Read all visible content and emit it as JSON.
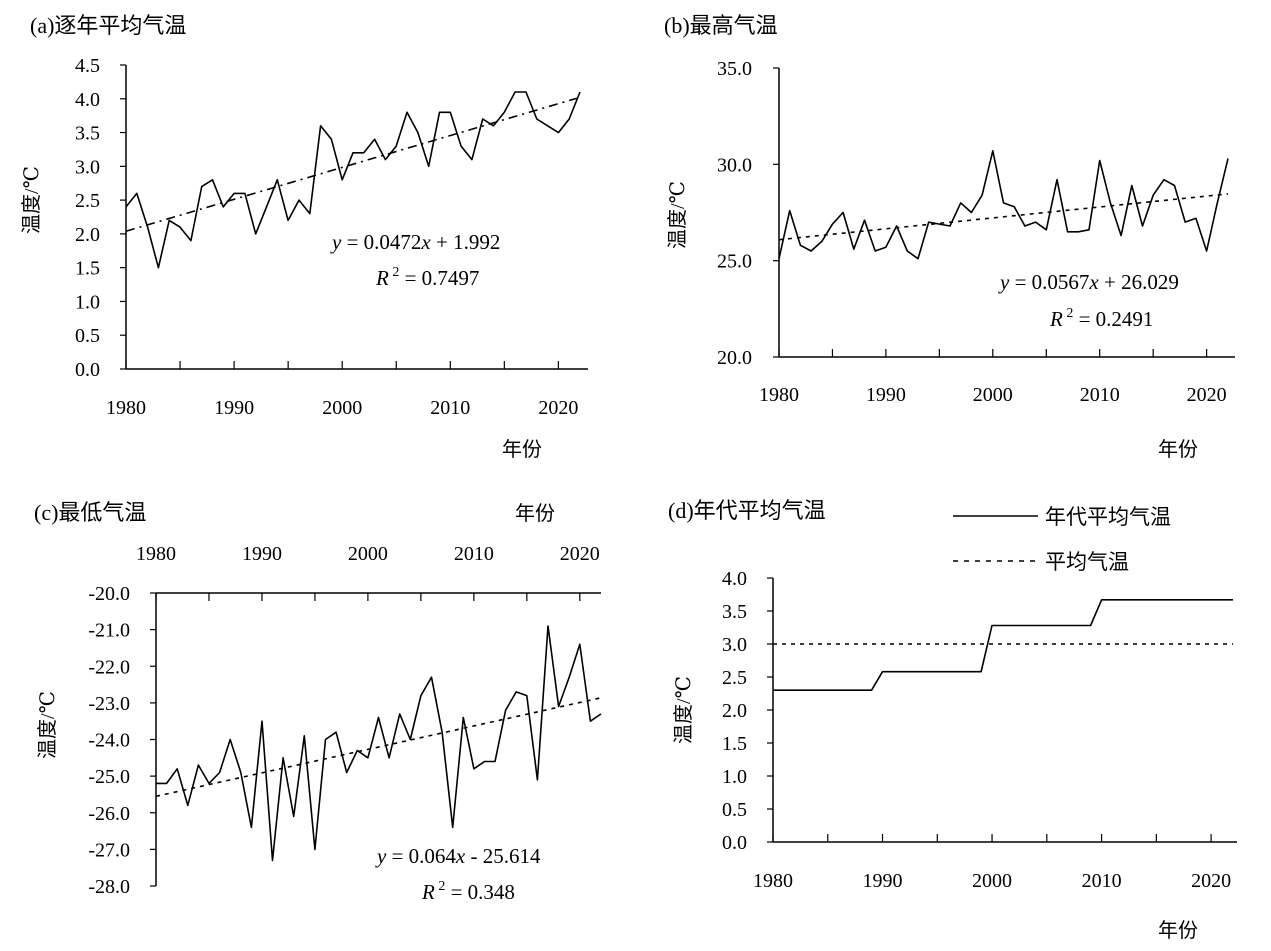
{
  "chart_data": [
    {
      "id": "a",
      "type": "line",
      "title": "(a)逐年平均气温",
      "xlabel": "年份",
      "ylabel": "温度/℃",
      "xlim": [
        1980,
        2022
      ],
      "ylim": [
        0.0,
        4.5
      ],
      "xticks": [
        "1980",
        "1990",
        "2000",
        "2010",
        "2020"
      ],
      "yticks": [
        "0.0",
        "0.5",
        "1.0",
        "1.5",
        "2.0",
        "2.5",
        "3.0",
        "3.5",
        "4.0",
        "4.5"
      ],
      "series": [
        {
          "style": "solid",
          "x": [
            1980,
            1981,
            1982,
            1983,
            1984,
            1985,
            1986,
            1987,
            1988,
            1989,
            1990,
            1991,
            1992,
            1993,
            1994,
            1995,
            1996,
            1997,
            1998,
            1999,
            2000,
            2001,
            2002,
            2003,
            2004,
            2005,
            2006,
            2007,
            2008,
            2009,
            2010,
            2011,
            2012,
            2013,
            2014,
            2015,
            2016,
            2017,
            2018,
            2019,
            2020,
            2021,
            2022
          ],
          "y": [
            2.4,
            2.6,
            2.1,
            1.5,
            2.2,
            2.1,
            1.9,
            2.7,
            2.8,
            2.4,
            2.6,
            2.6,
            2.0,
            2.4,
            2.8,
            2.2,
            2.5,
            2.3,
            3.6,
            3.4,
            2.8,
            3.2,
            3.2,
            3.4,
            3.1,
            3.3,
            3.8,
            3.5,
            3.0,
            3.8,
            3.8,
            3.3,
            3.1,
            3.7,
            3.6,
            3.8,
            4.1,
            4.1,
            3.7,
            3.6,
            3.5,
            3.7,
            4.1
          ]
        },
        {
          "style": "dash-dot",
          "trend": {
            "slope": 0.0472,
            "intercept": 1.992
          }
        }
      ],
      "annotations": {
        "equation": "y = 0.0472x + 1.992",
        "r2": "R 2 = 0.7497"
      }
    },
    {
      "id": "b",
      "type": "line",
      "title": "(b)最高气温",
      "xlabel": "年份",
      "ylabel": "温度/℃",
      "xlim": [
        1980,
        2022
      ],
      "ylim": [
        20.0,
        35.0
      ],
      "xticks": [
        "1980",
        "1990",
        "2000",
        "2010",
        "2020"
      ],
      "yticks": [
        "20.0",
        "25.0",
        "30.0",
        "35.0"
      ],
      "series": [
        {
          "style": "solid",
          "x": [
            1980,
            1981,
            1982,
            1983,
            1984,
            1985,
            1986,
            1987,
            1988,
            1989,
            1990,
            1991,
            1992,
            1993,
            1994,
            1995,
            1996,
            1997,
            1998,
            1999,
            2000,
            2001,
            2002,
            2003,
            2004,
            2005,
            2006,
            2007,
            2008,
            2009,
            2010,
            2011,
            2012,
            2013,
            2014,
            2015,
            2016,
            2017,
            2018,
            2019,
            2020,
            2021,
            2022
          ],
          "y": [
            25.1,
            27.6,
            25.8,
            25.5,
            26.0,
            26.9,
            27.5,
            25.6,
            27.1,
            25.5,
            25.7,
            26.8,
            25.5,
            25.1,
            27.0,
            26.9,
            26.8,
            28.0,
            27.5,
            28.4,
            30.7,
            28.0,
            27.8,
            26.8,
            27.0,
            26.6,
            29.2,
            26.5,
            26.5,
            26.6,
            30.2,
            28.0,
            26.3,
            28.9,
            26.8,
            28.4,
            29.2,
            28.9,
            27.0,
            27.2,
            25.5,
            28.0,
            30.3
          ]
        },
        {
          "style": "dash",
          "trend": {
            "slope": 0.0567,
            "intercept": 26.029
          }
        }
      ],
      "annotations": {
        "equation": "y = 0.0567x + 26.029",
        "r2": "R 2 = 0.2491"
      }
    },
    {
      "id": "c",
      "type": "line",
      "title": "(c)最低气温",
      "xlabel": "年份",
      "ylabel": "温度/℃",
      "xlim": [
        1980,
        2022
      ],
      "ylim": [
        -28.0,
        -20.0
      ],
      "x_axis_position": "top",
      "xticks": [
        "1980",
        "1990",
        "2000",
        "2010",
        "2020"
      ],
      "yticks": [
        "-20.0",
        "-21.0",
        "-22.0",
        "-23.0",
        "-24.0",
        "-25.0",
        "-26.0",
        "-27.0",
        "-28.0"
      ],
      "series": [
        {
          "style": "solid",
          "x": [
            1980,
            1981,
            1982,
            1983,
            1984,
            1985,
            1986,
            1987,
            1988,
            1989,
            1990,
            1991,
            1992,
            1993,
            1994,
            1995,
            1996,
            1997,
            1998,
            1999,
            2000,
            2001,
            2002,
            2003,
            2004,
            2005,
            2006,
            2007,
            2008,
            2009,
            2010,
            2011,
            2012,
            2013,
            2014,
            2015,
            2016,
            2017,
            2018,
            2019,
            2020,
            2021,
            2022
          ],
          "y": [
            -25.2,
            -25.2,
            -24.8,
            -25.8,
            -24.7,
            -25.2,
            -24.9,
            -24.0,
            -24.9,
            -26.4,
            -23.5,
            -27.3,
            -24.5,
            -26.1,
            -23.9,
            -27.0,
            -24.0,
            -23.8,
            -24.9,
            -24.3,
            -24.5,
            -23.4,
            -24.5,
            -23.3,
            -24.0,
            -22.8,
            -22.3,
            -23.8,
            -26.4,
            -23.4,
            -24.8,
            -24.6,
            -24.6,
            -23.2,
            -22.7,
            -22.8,
            -25.1,
            -20.9,
            -23.1,
            -22.3,
            -21.4,
            -23.5,
            -23.3
          ]
        },
        {
          "style": "dash",
          "trend": {
            "slope": 0.064,
            "intercept": -25.614
          }
        }
      ],
      "annotations": {
        "equation": "y = 0.064x - 25.614",
        "r2": "R 2 = 0.348"
      }
    },
    {
      "id": "d",
      "type": "line",
      "title": "(d)年代平均气温",
      "xlabel": "年份",
      "ylabel": "温度/℃",
      "xlim": [
        1980,
        2022
      ],
      "ylim": [
        0.0,
        4.0
      ],
      "xticks": [
        "1980",
        "1990",
        "2000",
        "2010",
        "2020"
      ],
      "yticks": [
        "0.0",
        "0.5",
        "1.0",
        "1.5",
        "2.0",
        "2.5",
        "3.0",
        "3.5",
        "4.0"
      ],
      "legend": "top-right",
      "series": [
        {
          "name": "年代平均气温",
          "style": "solid",
          "x": [
            1980,
            1989,
            1990,
            1999,
            2000,
            2009,
            2010,
            2022
          ],
          "y": [
            2.3,
            2.3,
            2.58,
            2.58,
            3.28,
            3.28,
            3.67,
            3.67
          ]
        },
        {
          "name": "平均气温",
          "style": "dash",
          "x": [
            1980,
            2022
          ],
          "y": [
            3.0,
            3.0
          ]
        }
      ]
    }
  ]
}
